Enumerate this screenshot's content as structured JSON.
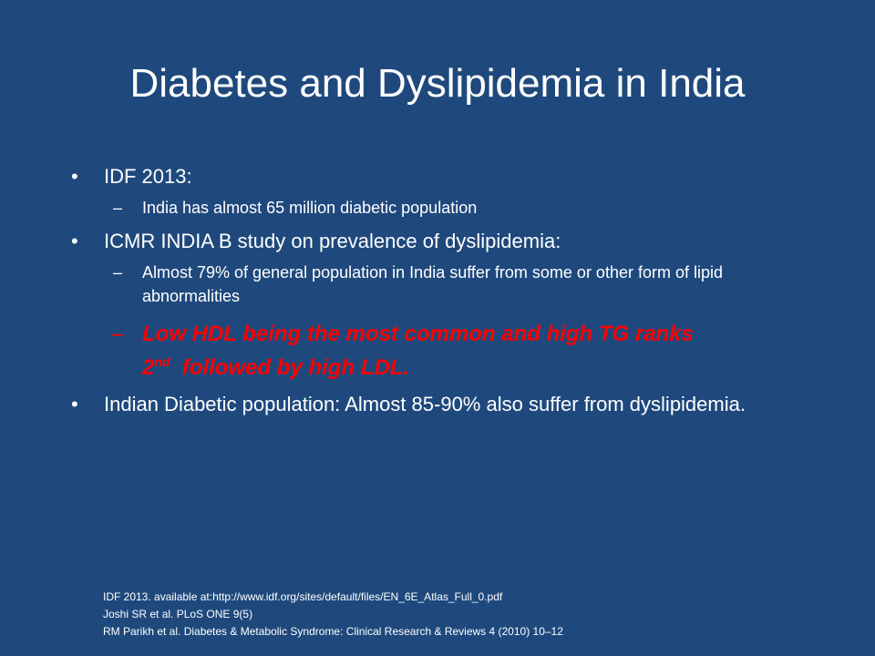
{
  "slide": {
    "title": "Diabetes and Dyslipidemia in India",
    "bullets": [
      {
        "text": "IDF 2013:",
        "subs": [
          "India has almost 65 million diabetic population"
        ]
      },
      {
        "text": "ICMR INDIA B study on prevalence of dyslipidemia:",
        "subs": [
          "Almost 79% of general population in India  suffer from some or other form of lipid abnormalities"
        ],
        "highlight": {
          "line1": "Low HDL being the most common and high TG ranks",
          "rank_number": "2",
          "rank_suffix": "nd",
          "line2_rest": "  followed by high LDL."
        }
      },
      {
        "text": "Indian Diabetic population: Almost 85-90% also suffer from dyslipidemia."
      }
    ],
    "bullet_glyph": "•",
    "dash_glyph": "–",
    "references": [
      "IDF 2013. available at:http://www.idf.org/sites/default/files/EN_6E_Atlas_Full_0.pdf",
      "Joshi SR et al. PLoS ONE 9(5)",
      "RM Parikh et al. Diabetes & Metabolic Syndrome: Clinical Research & Reviews 4 (2010) 10–12"
    ],
    "colors": {
      "background": "#1f497d",
      "text": "#ffffff",
      "highlight": "#ff0000"
    }
  }
}
